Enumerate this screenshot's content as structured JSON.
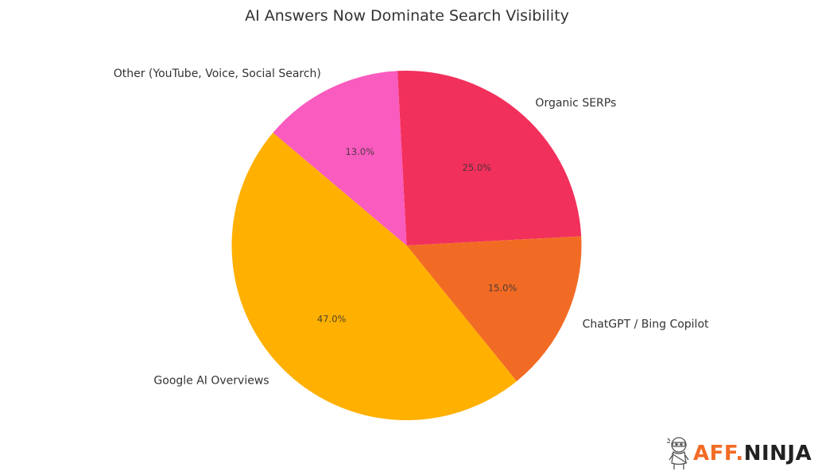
{
  "title": "AI Answers Now Dominate Search Visibility",
  "logo": {
    "brand_part1": "AFF.",
    "brand_part2": "NINJA",
    "icon": "ninja-mascot-icon"
  },
  "chart_data": {
    "type": "pie",
    "title": "AI Answers Now Dominate Search Visibility",
    "start_angle_deg": 93,
    "direction": "clockwise",
    "center": [
      511.5,
      309
    ],
    "radius": 220,
    "slices": [
      {
        "label": "Organic SERPs",
        "value": 25.0,
        "pct_label": "25.0%",
        "color": "#F2305C"
      },
      {
        "label": "ChatGPT / Bing Copilot",
        "value": 15.0,
        "pct_label": "15.0%",
        "color": "#F26B25"
      },
      {
        "label": "Google AI Overviews",
        "value": 47.0,
        "pct_label": "47.0%",
        "color": "#FFB000"
      },
      {
        "label": "Other (YouTube, Voice, Social Search)",
        "value": 13.0,
        "pct_label": "13.0%",
        "color": "#F95BBE"
      }
    ],
    "legend": "none",
    "grid": false
  }
}
